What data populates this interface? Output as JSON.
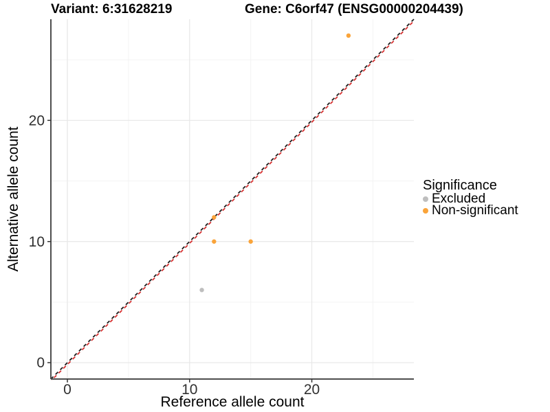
{
  "title": {
    "variant": "Variant: 6:31628219",
    "gene": "Gene: C6orf47 (ENSG00000204439)"
  },
  "chart_data": {
    "type": "scatter",
    "title": "Variant: 6:31628219   Gene: C6orf47 (ENSG00000204439)",
    "xlabel": "Reference allele count",
    "ylabel": "Alternative allele count",
    "xlim": [
      -1.35,
      28.35
    ],
    "ylim": [
      -1.35,
      28.35
    ],
    "x_ticks": [
      0,
      10,
      20
    ],
    "y_ticks": [
      0,
      10,
      20
    ],
    "x_minor_ticks": [
      5,
      15,
      25
    ],
    "y_minor_ticks": [
      5,
      15,
      25
    ],
    "grid": "major+minor",
    "series": [
      {
        "name": "Excluded",
        "color": "#BEBEBE",
        "points": [
          [
            11,
            6
          ]
        ]
      },
      {
        "name": "Non-significant",
        "color": "#FAA43A",
        "points": [
          [
            12,
            12
          ],
          [
            12,
            10
          ],
          [
            15,
            10
          ],
          [
            23,
            27
          ]
        ]
      }
    ],
    "reference_lines": [
      {
        "name": "identity",
        "style": "dashed",
        "color": "#1C1C1C",
        "slope": 1,
        "intercept": 0
      },
      {
        "name": "expected",
        "style": "dashed",
        "color": "#D62F2F",
        "slope": 1,
        "intercept": 0
      }
    ],
    "legend": {
      "title": "Significance",
      "position": "right",
      "items": [
        {
          "label": "Excluded",
          "color": "#BEBEBE"
        },
        {
          "label": "Non-significant",
          "color": "#FAA43A"
        }
      ]
    }
  }
}
